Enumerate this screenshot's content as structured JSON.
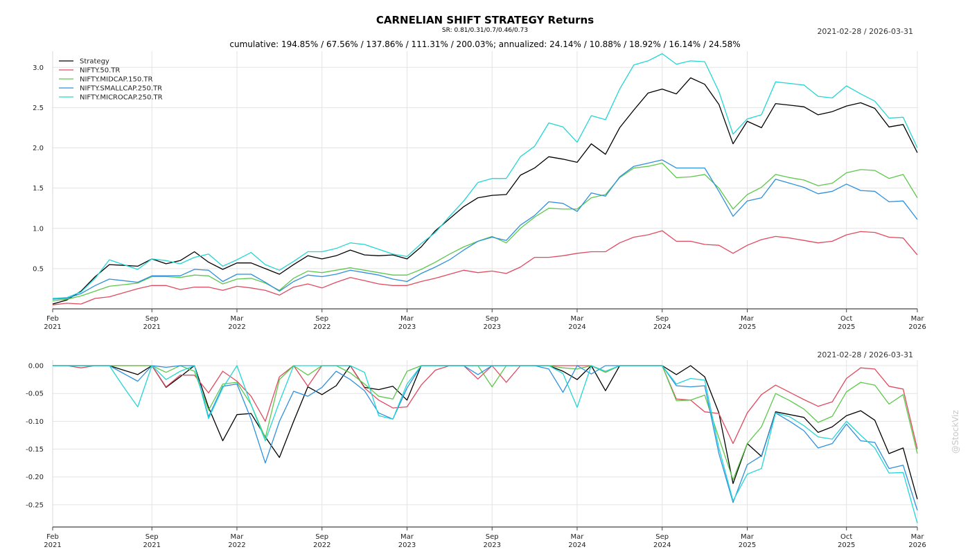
{
  "header": {
    "title": "CARNELIAN SHIFT STRATEGY Returns",
    "sr": "SR: 0.81/0.31/0.7/0.46/0.73",
    "date_range": "2021-02-28 / 2026-03-31",
    "stats": "cumulative: 194.85% / 67.56% / 137.86% / 111.31% / 200.03%; annualized: 24.14% / 10.88% / 18.92% / 16.14% / 24.58%"
  },
  "drawdown_header": {
    "date_range": "2021-02-28 / 2026-03-31"
  },
  "watermark": "@StockViz",
  "chart_data": [
    {
      "type": "line",
      "title": "CARNELIAN SHIFT STRATEGY Returns",
      "xlabel": "",
      "ylabel": "",
      "grid": true,
      "legend_position": "top-left",
      "ylim": [
        0,
        3.2
      ],
      "yticks": [
        "0.5",
        "1.0",
        "1.5",
        "2.0",
        "2.5",
        "3.0"
      ],
      "xticks": [
        [
          "Feb",
          "2021"
        ],
        [
          "Sep",
          "2021"
        ],
        [
          "Mar",
          "2022"
        ],
        [
          "Sep",
          "2022"
        ],
        [
          "Mar",
          "2023"
        ],
        [
          "Sep",
          "2023"
        ],
        [
          "Mar",
          "2024"
        ],
        [
          "Sep",
          "2024"
        ],
        [
          "Mar",
          "2025"
        ],
        [
          "Oct",
          "2025"
        ],
        [
          "Mar",
          "2026"
        ]
      ],
      "x": [
        "2021-02",
        "2021-03",
        "2021-04",
        "2021-05",
        "2021-06",
        "2021-07",
        "2021-08",
        "2021-09",
        "2021-10",
        "2021-11",
        "2021-12",
        "2022-01",
        "2022-02",
        "2022-03",
        "2022-04",
        "2022-05",
        "2022-06",
        "2022-07",
        "2022-08",
        "2022-09",
        "2022-10",
        "2022-11",
        "2022-12",
        "2023-01",
        "2023-02",
        "2023-03",
        "2023-04",
        "2023-05",
        "2023-06",
        "2023-07",
        "2023-08",
        "2023-09",
        "2023-10",
        "2023-11",
        "2023-12",
        "2024-01",
        "2024-02",
        "2024-03",
        "2024-04",
        "2024-05",
        "2024-06",
        "2024-07",
        "2024-08",
        "2024-09",
        "2024-10",
        "2024-11",
        "2024-12",
        "2025-01",
        "2025-02",
        "2025-03",
        "2025-04",
        "2025-05",
        "2025-06",
        "2025-07",
        "2025-08",
        "2025-09",
        "2025-10",
        "2025-11",
        "2025-12",
        "2026-01",
        "2026-02",
        "2026-03"
      ],
      "series": [
        {
          "name": "Strategy",
          "color": "#000000",
          "values": [
            0.06,
            0.11,
            0.22,
            0.4,
            0.55,
            0.54,
            0.53,
            0.62,
            0.56,
            0.6,
            0.71,
            0.58,
            0.49,
            0.57,
            0.57,
            0.5,
            0.43,
            0.55,
            0.66,
            0.62,
            0.66,
            0.73,
            0.67,
            0.66,
            0.67,
            0.62,
            0.77,
            0.97,
            1.12,
            1.27,
            1.38,
            1.41,
            1.42,
            1.66,
            1.75,
            1.89,
            1.86,
            1.82,
            2.05,
            1.92,
            2.25,
            2.47,
            2.68,
            2.73,
            2.67,
            2.87,
            2.79,
            2.54,
            2.05,
            2.33,
            2.25,
            2.55,
            2.53,
            2.51,
            2.41,
            2.45,
            2.52,
            2.56,
            2.49,
            2.26,
            2.29,
            1.94
          ]
        },
        {
          "name": "NIFTY.50.TR",
          "color": "#e04a5f",
          "values": [
            0.05,
            0.07,
            0.06,
            0.13,
            0.15,
            0.2,
            0.25,
            0.29,
            0.29,
            0.24,
            0.27,
            0.27,
            0.23,
            0.28,
            0.26,
            0.23,
            0.17,
            0.27,
            0.31,
            0.26,
            0.33,
            0.39,
            0.35,
            0.31,
            0.29,
            0.29,
            0.34,
            0.38,
            0.43,
            0.48,
            0.45,
            0.47,
            0.44,
            0.52,
            0.64,
            0.64,
            0.66,
            0.69,
            0.71,
            0.71,
            0.82,
            0.89,
            0.92,
            0.97,
            0.84,
            0.84,
            0.8,
            0.79,
            0.69,
            0.79,
            0.86,
            0.9,
            0.88,
            0.85,
            0.82,
            0.84,
            0.92,
            0.96,
            0.95,
            0.89,
            0.88,
            0.67
          ]
        },
        {
          "name": "NIFTY.MIDCAP.150.TR",
          "color": "#5cc84a",
          "values": [
            0.1,
            0.12,
            0.16,
            0.22,
            0.28,
            0.3,
            0.32,
            0.4,
            0.4,
            0.39,
            0.42,
            0.41,
            0.31,
            0.37,
            0.38,
            0.32,
            0.23,
            0.38,
            0.47,
            0.45,
            0.48,
            0.51,
            0.48,
            0.45,
            0.42,
            0.42,
            0.49,
            0.58,
            0.68,
            0.77,
            0.84,
            0.9,
            0.82,
            1.0,
            1.14,
            1.25,
            1.24,
            1.24,
            1.38,
            1.42,
            1.63,
            1.75,
            1.77,
            1.81,
            1.63,
            1.64,
            1.67,
            1.5,
            1.24,
            1.42,
            1.51,
            1.67,
            1.63,
            1.6,
            1.53,
            1.56,
            1.69,
            1.73,
            1.72,
            1.62,
            1.67,
            1.38
          ]
        },
        {
          "name": "NIFTY.SMALLCAP.250.TR",
          "color": "#2d8fdd",
          "values": [
            0.12,
            0.13,
            0.19,
            0.29,
            0.37,
            0.35,
            0.33,
            0.41,
            0.41,
            0.41,
            0.49,
            0.48,
            0.34,
            0.43,
            0.43,
            0.33,
            0.22,
            0.34,
            0.42,
            0.4,
            0.43,
            0.48,
            0.45,
            0.42,
            0.37,
            0.34,
            0.44,
            0.52,
            0.61,
            0.73,
            0.84,
            0.89,
            0.85,
            1.04,
            1.16,
            1.33,
            1.31,
            1.21,
            1.44,
            1.4,
            1.64,
            1.77,
            1.81,
            1.85,
            1.75,
            1.75,
            1.75,
            1.46,
            1.15,
            1.34,
            1.38,
            1.61,
            1.56,
            1.51,
            1.43,
            1.46,
            1.55,
            1.47,
            1.46,
            1.33,
            1.34,
            1.11
          ]
        },
        {
          "name": "NIFTY.MICROCAP.250.TR",
          "color": "#22d6d4",
          "values": [
            0.13,
            0.14,
            0.21,
            0.38,
            0.61,
            0.55,
            0.49,
            0.62,
            0.6,
            0.56,
            0.64,
            0.68,
            0.53,
            0.61,
            0.7,
            0.55,
            0.48,
            0.59,
            0.71,
            0.71,
            0.75,
            0.82,
            0.8,
            0.74,
            0.68,
            0.65,
            0.81,
            0.95,
            1.15,
            1.34,
            1.57,
            1.62,
            1.62,
            1.89,
            2.02,
            2.31,
            2.26,
            2.07,
            2.4,
            2.35,
            2.73,
            3.03,
            3.08,
            3.17,
            3.04,
            3.08,
            3.07,
            2.7,
            2.17,
            2.36,
            2.41,
            2.82,
            2.8,
            2.78,
            2.64,
            2.62,
            2.77,
            2.67,
            2.58,
            2.37,
            2.38,
            2.0
          ]
        }
      ]
    },
    {
      "type": "line",
      "title": "",
      "xlabel": "",
      "ylabel": "",
      "grid": true,
      "ylim": [
        -0.29,
        0.01
      ],
      "yticks": [
        "0.00",
        "-0.05",
        "-0.10",
        "-0.15",
        "-0.20",
        "-0.25"
      ],
      "xticks": [
        [
          "Feb",
          "2021"
        ],
        [
          "Sep",
          "2021"
        ],
        [
          "Mar",
          "2022"
        ],
        [
          "Sep",
          "2022"
        ],
        [
          "Mar",
          "2023"
        ],
        [
          "Sep",
          "2023"
        ],
        [
          "Mar",
          "2024"
        ],
        [
          "Sep",
          "2024"
        ],
        [
          "Mar",
          "2025"
        ],
        [
          "Oct",
          "2025"
        ],
        [
          "Mar",
          "2026"
        ]
      ],
      "x": [
        "2021-02",
        "2021-03",
        "2021-04",
        "2021-05",
        "2021-06",
        "2021-07",
        "2021-08",
        "2021-09",
        "2021-10",
        "2021-11",
        "2021-12",
        "2022-01",
        "2022-02",
        "2022-03",
        "2022-04",
        "2022-05",
        "2022-06",
        "2022-07",
        "2022-08",
        "2022-09",
        "2022-10",
        "2022-11",
        "2022-12",
        "2023-01",
        "2023-02",
        "2023-03",
        "2023-04",
        "2023-05",
        "2023-06",
        "2023-07",
        "2023-08",
        "2023-09",
        "2023-10",
        "2023-11",
        "2023-12",
        "2024-01",
        "2024-02",
        "2024-03",
        "2024-04",
        "2024-05",
        "2024-06",
        "2024-07",
        "2024-08",
        "2024-09",
        "2024-10",
        "2024-11",
        "2024-12",
        "2025-01",
        "2025-02",
        "2025-03",
        "2025-04",
        "2025-05",
        "2025-06",
        "2025-07",
        "2025-08",
        "2025-09",
        "2025-10",
        "2025-11",
        "2025-12",
        "2026-01",
        "2026-02",
        "2026-03"
      ],
      "series": [
        {
          "name": "Strategy",
          "color": "#000000",
          "values": [
            0,
            0,
            0,
            0,
            0,
            -0.008,
            -0.016,
            0,
            -0.039,
            -0.02,
            0,
            -0.075,
            -0.135,
            -0.088,
            -0.086,
            -0.128,
            -0.165,
            -0.1,
            -0.038,
            -0.052,
            -0.036,
            0,
            -0.039,
            -0.043,
            -0.037,
            -0.062,
            0,
            0,
            0,
            0,
            0,
            0,
            0,
            0,
            0,
            0,
            -0.01,
            -0.025,
            0,
            -0.045,
            0,
            0,
            0,
            0,
            -0.016,
            0,
            -0.02,
            -0.085,
            -0.212,
            -0.14,
            -0.163,
            -0.083,
            -0.088,
            -0.093,
            -0.12,
            -0.11,
            -0.09,
            -0.081,
            -0.098,
            -0.158,
            -0.148,
            -0.24
          ]
        },
        {
          "name": "NIFTY.50.TR",
          "color": "#e04a5f",
          "values": [
            0,
            0,
            -0.004,
            0,
            0,
            0,
            0,
            0,
            -0.038,
            -0.017,
            -0.017,
            -0.049,
            -0.01,
            -0.028,
            -0.055,
            -0.1,
            -0.02,
            0,
            -0.037,
            0,
            0,
            0,
            -0.04,
            -0.062,
            -0.076,
            -0.074,
            -0.035,
            -0.008,
            0,
            0,
            -0.024,
            0,
            -0.03,
            0,
            0,
            0,
            0,
            0,
            0,
            -0.012,
            0,
            0,
            0,
            0,
            -0.06,
            -0.062,
            -0.083,
            -0.086,
            -0.14,
            -0.085,
            -0.052,
            -0.035,
            -0.048,
            -0.061,
            -0.073,
            -0.065,
            -0.023,
            -0.004,
            -0.006,
            -0.037,
            -0.042,
            -0.15
          ]
        },
        {
          "name": "NIFTY.MIDCAP.150.TR",
          "color": "#5cc84a",
          "values": [
            0,
            0,
            0,
            0,
            0,
            0,
            0,
            0,
            -0.012,
            0,
            -0.01,
            -0.08,
            -0.033,
            -0.03,
            -0.07,
            -0.13,
            -0.025,
            0,
            -0.017,
            0,
            0,
            -0.013,
            -0.033,
            -0.055,
            -0.06,
            -0.01,
            0,
            0,
            0,
            0,
            0,
            -0.038,
            0,
            0,
            0,
            0,
            -0.004,
            -0.006,
            0,
            -0.012,
            0,
            0,
            0,
            0,
            -0.063,
            -0.062,
            -0.053,
            -0.13,
            -0.205,
            -0.14,
            -0.11,
            -0.05,
            -0.063,
            -0.078,
            -0.102,
            -0.091,
            -0.047,
            -0.03,
            -0.035,
            -0.069,
            -0.052,
            -0.158
          ]
        },
        {
          "name": "NIFTY.SMALLCAP.250.TR",
          "color": "#2d8fdd",
          "values": [
            0,
            0,
            0,
            0,
            0,
            -0.014,
            -0.028,
            0,
            -0.003,
            0,
            0,
            -0.092,
            -0.037,
            -0.033,
            -0.096,
            -0.175,
            -0.1,
            -0.046,
            -0.055,
            -0.039,
            -0.01,
            -0.025,
            -0.045,
            -0.085,
            -0.096,
            -0.04,
            0,
            0,
            0,
            0,
            -0.016,
            0,
            0,
            0,
            0,
            -0.006,
            -0.048,
            0,
            -0.015,
            0,
            0,
            0,
            0,
            0,
            -0.036,
            -0.038,
            -0.036,
            -0.158,
            -0.246,
            -0.178,
            -0.162,
            -0.085,
            -0.1,
            -0.117,
            -0.148,
            -0.14,
            -0.105,
            -0.135,
            -0.138,
            -0.185,
            -0.179,
            -0.26
          ]
        },
        {
          "name": "NIFTY.MICROCAP.250.TR",
          "color": "#22d6d4",
          "values": [
            0,
            0,
            0,
            0,
            0,
            -0.038,
            -0.074,
            0,
            -0.025,
            -0.01,
            0,
            -0.095,
            -0.04,
            0,
            -0.07,
            -0.135,
            -0.065,
            0,
            0,
            0,
            0,
            0,
            -0.012,
            -0.09,
            -0.096,
            -0.033,
            0,
            0,
            0,
            0,
            0,
            0,
            0,
            0,
            0,
            0,
            -0.014,
            -0.075,
            0,
            -0.01,
            0,
            0,
            0,
            0,
            -0.033,
            -0.023,
            -0.026,
            -0.148,
            -0.243,
            -0.195,
            -0.185,
            -0.085,
            -0.092,
            -0.108,
            -0.128,
            -0.132,
            -0.1,
            -0.125,
            -0.148,
            -0.193,
            -0.192,
            -0.283
          ]
        }
      ]
    }
  ]
}
